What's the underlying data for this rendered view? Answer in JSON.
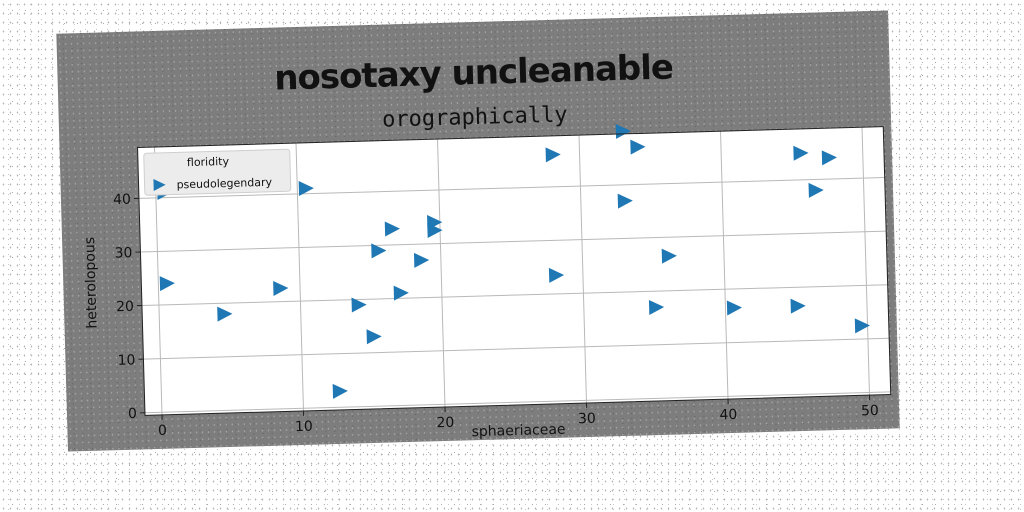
{
  "chart_data": {
    "type": "scatter",
    "suptitle": "nosotaxy uncleanable",
    "title": "orographically",
    "xlabel": "sphaeriaceae",
    "ylabel": "heterolopous",
    "xlim": [
      -1.2,
      51.5
    ],
    "ylim": [
      -0.5,
      49.5
    ],
    "xticks": [
      0,
      10,
      20,
      30,
      40,
      50
    ],
    "yticks": [
      0,
      10,
      20,
      30,
      40
    ],
    "grid": true,
    "legend": {
      "title": "floridity",
      "placement": "top-left"
    },
    "series": [
      {
        "name": "pseudolegendary",
        "color": "#1f77b4",
        "marker": "triangle-right",
        "points": [
          [
            0.5,
            41
          ],
          [
            10.5,
            41
          ],
          [
            0.5,
            24
          ],
          [
            4.5,
            18
          ],
          [
            8.5,
            22.5
          ],
          [
            12.5,
            3
          ],
          [
            14,
            19
          ],
          [
            15,
            13
          ],
          [
            15.5,
            29
          ],
          [
            16.5,
            33
          ],
          [
            17,
            21
          ],
          [
            18.5,
            27
          ],
          [
            19.5,
            34
          ],
          [
            19.5,
            32.5
          ],
          [
            28,
            46
          ],
          [
            28,
            23.5
          ],
          [
            33,
            50
          ],
          [
            34,
            47
          ],
          [
            33,
            37
          ],
          [
            36,
            26.5
          ],
          [
            35,
            17
          ],
          [
            40.5,
            16.5
          ],
          [
            45,
            16.5
          ],
          [
            45.5,
            45
          ],
          [
            47.5,
            44
          ],
          [
            46.5,
            38
          ],
          [
            49.5,
            12.5
          ]
        ]
      }
    ]
  }
}
